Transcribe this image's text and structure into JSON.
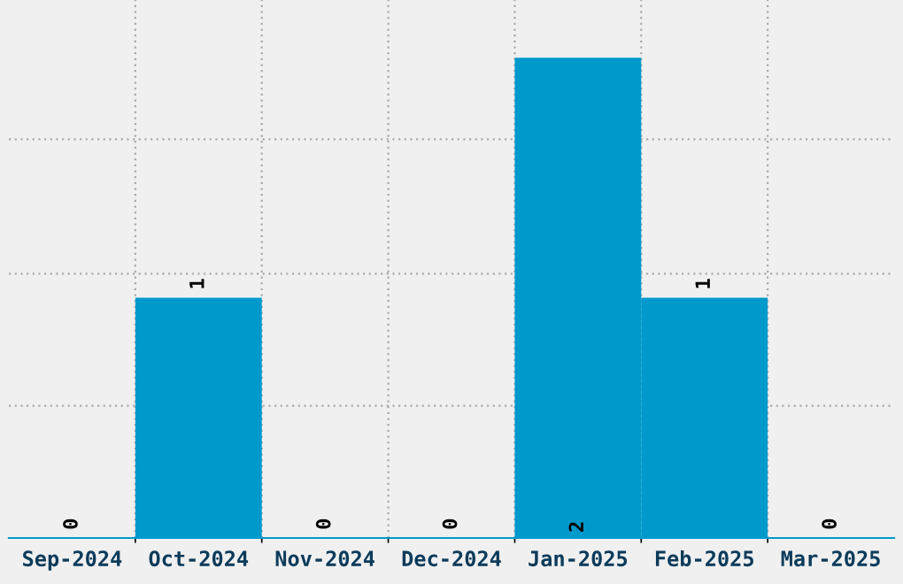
{
  "chart_data": {
    "type": "bar",
    "categories": [
      "Sep-2024",
      "Oct-2024",
      "Nov-2024",
      "Dec-2024",
      "Jan-2025",
      "Feb-2025",
      "Mar-2025"
    ],
    "values": [
      0,
      1,
      0,
      0,
      2,
      1,
      0
    ],
    "color": "#0099cc",
    "ylim": [
      0,
      2.24
    ],
    "yticks": [
      {
        "value": 0.55,
        "label": null
      },
      {
        "value": 1.1,
        "label": null
      },
      {
        "value": 1.66,
        "label": null
      }
    ],
    "data_labels": true,
    "grid": true,
    "legend": false
  }
}
